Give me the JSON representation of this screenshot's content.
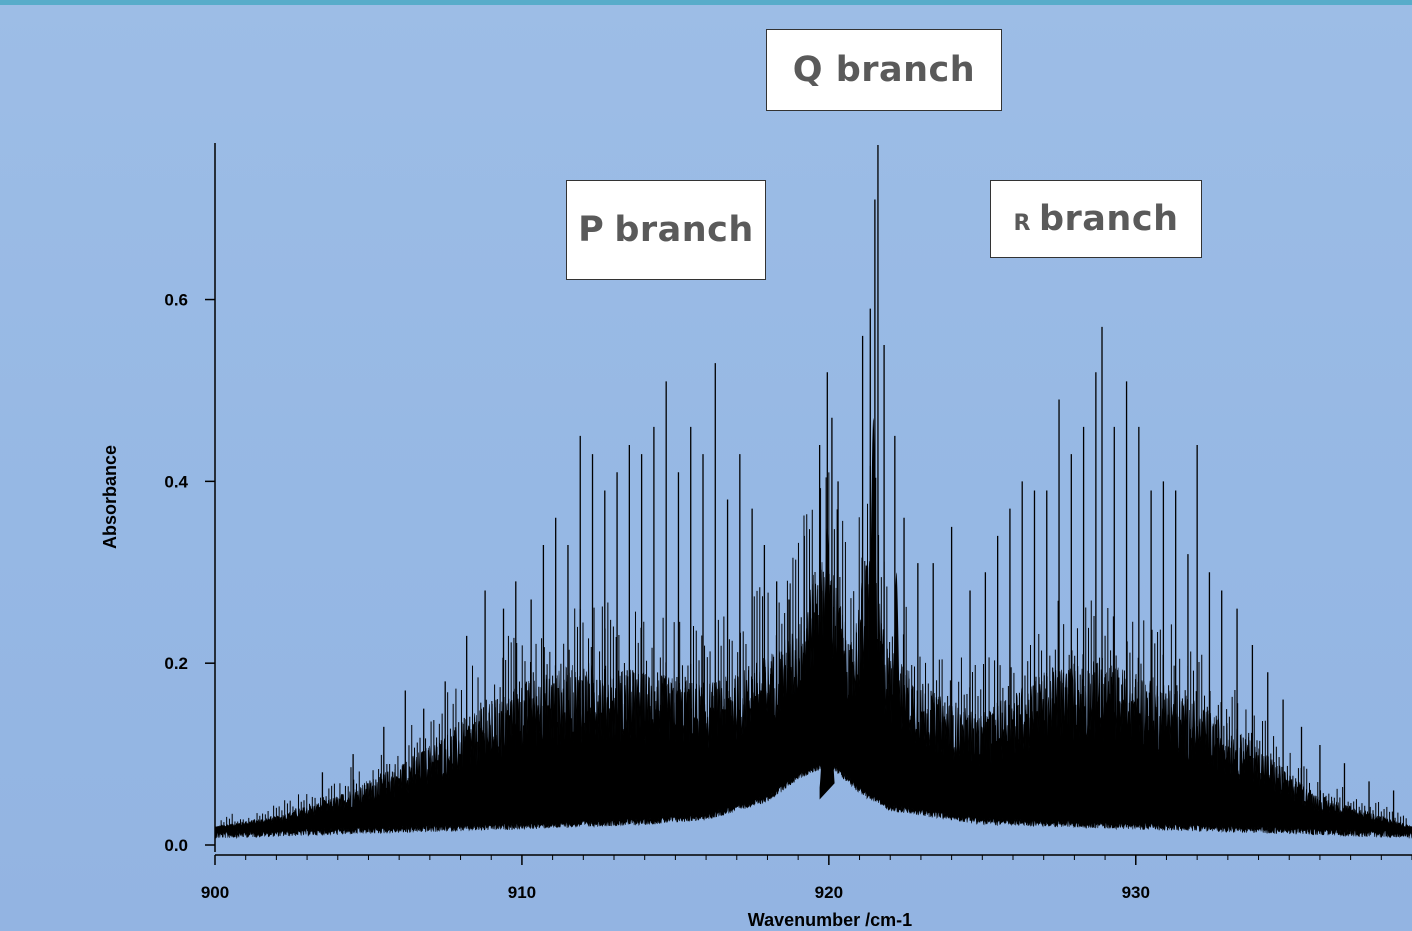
{
  "chart_data": {
    "type": "line",
    "title": "",
    "xlabel": "Wavenumber /cm-1",
    "ylabel": "Absorbance",
    "xlim": [
      900,
      939
    ],
    "ylim": [
      0.0,
      0.77
    ],
    "x_ticks": [
      900,
      910,
      920,
      930
    ],
    "y_ticks": [
      0.0,
      0.2,
      0.4,
      0.6
    ],
    "x_tick_labels": [
      "900",
      "910",
      "920",
      "930"
    ],
    "y_tick_labels": [
      "0.0",
      "0.2",
      "0.4",
      "0.6"
    ],
    "grid": false,
    "legend": "none",
    "line_color": "#000000",
    "series": [
      {
        "baseline_envelope": [
          [
            900,
            0.02
          ],
          [
            902,
            0.03
          ],
          [
            904,
            0.05
          ],
          [
            906,
            0.08
          ],
          [
            908,
            0.12
          ],
          [
            909,
            0.14
          ],
          [
            910,
            0.16
          ],
          [
            912,
            0.18
          ],
          [
            914,
            0.17
          ],
          [
            916,
            0.16
          ],
          [
            917,
            0.17
          ],
          [
            918,
            0.19
          ],
          [
            919,
            0.22
          ],
          [
            919.5,
            0.27
          ],
          [
            920,
            0.3
          ],
          [
            920.7,
            0.2
          ],
          [
            921.3,
            0.3
          ],
          [
            921.9,
            0.2
          ],
          [
            922.5,
            0.18
          ],
          [
            923,
            0.16
          ],
          [
            924,
            0.14
          ],
          [
            925,
            0.13
          ],
          [
            926,
            0.15
          ],
          [
            927,
            0.17
          ],
          [
            928,
            0.18
          ],
          [
            929,
            0.18
          ],
          [
            930,
            0.17
          ],
          [
            931,
            0.16
          ],
          [
            932,
            0.14
          ],
          [
            933,
            0.12
          ],
          [
            934,
            0.1
          ],
          [
            935,
            0.07
          ],
          [
            936,
            0.05
          ],
          [
            937,
            0.04
          ],
          [
            938,
            0.03
          ],
          [
            939,
            0.02
          ]
        ],
        "lower_envelope": [
          [
            900,
            0.015
          ],
          [
            905,
            0.02
          ],
          [
            910,
            0.025
          ],
          [
            914,
            0.03
          ],
          [
            916,
            0.035
          ],
          [
            918,
            0.055
          ],
          [
            919,
            0.08
          ],
          [
            920,
            0.095
          ],
          [
            921,
            0.065
          ],
          [
            922,
            0.045
          ],
          [
            925,
            0.03
          ],
          [
            930,
            0.025
          ],
          [
            935,
            0.02
          ],
          [
            939,
            0.015
          ]
        ],
        "p_branch_peaks": [
          [
            903.5,
            0.08
          ],
          [
            904.5,
            0.1
          ],
          [
            905.5,
            0.13
          ],
          [
            906.2,
            0.17
          ],
          [
            906.8,
            0.15
          ],
          [
            907.5,
            0.18
          ],
          [
            908.2,
            0.23
          ],
          [
            908.8,
            0.28
          ],
          [
            909.4,
            0.26
          ],
          [
            909.8,
            0.29
          ],
          [
            910.3,
            0.27
          ],
          [
            910.7,
            0.33
          ],
          [
            911.1,
            0.36
          ],
          [
            911.5,
            0.33
          ],
          [
            911.9,
            0.45
          ],
          [
            912.3,
            0.43
          ],
          [
            912.7,
            0.39
          ],
          [
            913.1,
            0.41
          ],
          [
            913.5,
            0.44
          ],
          [
            913.9,
            0.43
          ],
          [
            914.3,
            0.46
          ],
          [
            914.7,
            0.51
          ],
          [
            915.1,
            0.41
          ],
          [
            915.5,
            0.46
          ],
          [
            915.9,
            0.43
          ],
          [
            916.3,
            0.53
          ],
          [
            916.7,
            0.38
          ],
          [
            917.1,
            0.43
          ],
          [
            917.5,
            0.37
          ],
          [
            917.9,
            0.33
          ],
          [
            918.3,
            0.29
          ],
          [
            918.7,
            0.27
          ]
        ],
        "q_branch_peaks": [
          [
            919.2,
            0.34
          ],
          [
            919.7,
            0.44
          ],
          [
            919.95,
            0.52
          ],
          [
            920.1,
            0.47
          ],
          [
            920.3,
            0.4
          ],
          [
            921.1,
            0.56
          ],
          [
            921.35,
            0.59
          ],
          [
            921.5,
            0.71
          ],
          [
            921.6,
            0.77
          ],
          [
            921.8,
            0.55
          ],
          [
            922.15,
            0.45
          ],
          [
            922.45,
            0.36
          ],
          [
            922.9,
            0.31
          ],
          [
            923.4,
            0.31
          ],
          [
            924.0,
            0.35
          ]
        ],
        "r_branch_peaks": [
          [
            924.6,
            0.28
          ],
          [
            925.1,
            0.3
          ],
          [
            925.5,
            0.34
          ],
          [
            925.9,
            0.37
          ],
          [
            926.3,
            0.4
          ],
          [
            926.7,
            0.39
          ],
          [
            927.1,
            0.39
          ],
          [
            927.5,
            0.49
          ],
          [
            927.9,
            0.43
          ],
          [
            928.3,
            0.46
          ],
          [
            928.7,
            0.52
          ],
          [
            928.9,
            0.57
          ],
          [
            929.3,
            0.46
          ],
          [
            929.7,
            0.51
          ],
          [
            930.1,
            0.46
          ],
          [
            930.5,
            0.39
          ],
          [
            930.9,
            0.4
          ],
          [
            931.3,
            0.39
          ],
          [
            931.7,
            0.32
          ],
          [
            932.0,
            0.44
          ],
          [
            932.4,
            0.3
          ],
          [
            932.8,
            0.28
          ],
          [
            933.3,
            0.26
          ],
          [
            933.8,
            0.22
          ],
          [
            934.3,
            0.19
          ],
          [
            934.8,
            0.16
          ],
          [
            935.4,
            0.13
          ],
          [
            936,
            0.11
          ],
          [
            936.8,
            0.09
          ],
          [
            937.6,
            0.07
          ],
          [
            938.4,
            0.06
          ]
        ]
      }
    ],
    "annotations": [
      {
        "label": "Q branch",
        "small_prefix": ""
      },
      {
        "label": "branch",
        "small_prefix": "P"
      },
      {
        "label": "branch",
        "small_prefix": "R"
      }
    ]
  }
}
